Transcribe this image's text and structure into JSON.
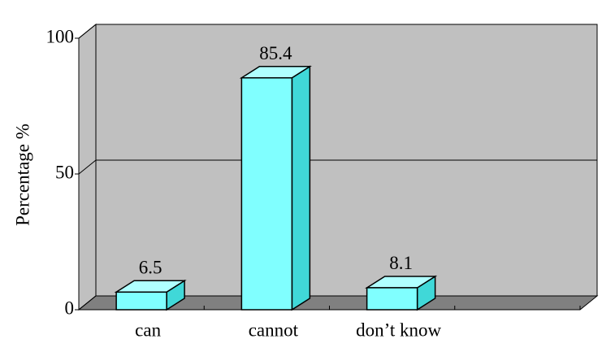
{
  "chart_data": {
    "type": "bar3d",
    "ylabel": "Percentage %",
    "categories": [
      "can",
      "cannot",
      "don’t know"
    ],
    "values": [
      6.5,
      85.4,
      8.1
    ],
    "color": "#80ffff",
    "ylim": [
      0,
      100
    ],
    "yticks": [
      0,
      50,
      100
    ],
    "grid": true
  }
}
